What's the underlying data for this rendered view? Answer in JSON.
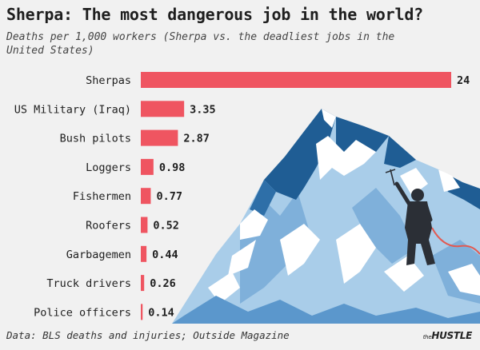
{
  "chart_data": {
    "type": "bar",
    "orientation": "horizontal",
    "title": "Sherpa: The most dangerous job in the world?",
    "subtitle": "Deaths per 1,000 workers (Sherpa vs. the deadliest jobs in the United States)",
    "categories": [
      "Sherpas",
      "US Military (Iraq)",
      "Bush pilots",
      "Loggers",
      "Fishermen",
      "Roofers",
      "Garbagemen",
      "Truck drivers",
      "Police officers"
    ],
    "values": [
      24,
      3.35,
      2.87,
      0.98,
      0.77,
      0.52,
      0.44,
      0.26,
      0.14
    ],
    "value_labels": [
      "24",
      "3.35",
      "2.87",
      "0.98",
      "0.77",
      "0.52",
      "0.44",
      "0.26",
      "0.14"
    ],
    "xlim": [
      0,
      24
    ],
    "grid": false,
    "bar_color": "#ef5561",
    "source": "Data: BLS deaths and injuries; Outside Magazine"
  },
  "brand": {
    "prefix": "the",
    "name": "HUSTLE"
  },
  "illustration": {
    "icons": [
      "mountain-icon",
      "climber-icon",
      "rope-icon"
    ],
    "colors": {
      "sky_dark": "#1f5d94",
      "ice": "#a9cde9",
      "snow": "#ffffff",
      "climber": "#2b2f36",
      "rope": "#e25a52"
    }
  }
}
